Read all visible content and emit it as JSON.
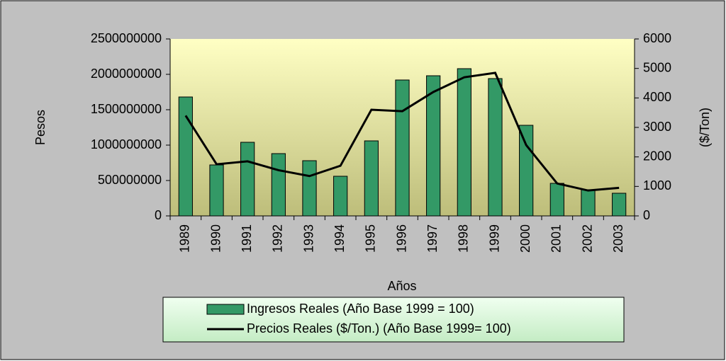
{
  "chart_data": {
    "type": "bar_line",
    "categories": [
      "1989",
      "1990",
      "1991",
      "1992",
      "1993",
      "1994",
      "1995",
      "1996",
      "1997",
      "1998",
      "1999",
      "2000",
      "2001",
      "2002",
      "2003"
    ],
    "series": [
      {
        "name": "Ingresos Reales (Año Base 1999 = 100)",
        "color": "#339966",
        "type": "bar",
        "values": [
          1680000000,
          720000000,
          1040000000,
          880000000,
          780000000,
          560000000,
          1060000000,
          1920000000,
          1980000000,
          2080000000,
          1940000000,
          1280000000,
          460000000,
          370000000,
          320000000
        ]
      },
      {
        "name": "Precios Reales ($/Ton.) (Año Base 1999= 100)",
        "color": "#000000",
        "type": "line",
        "axis": "y2",
        "values": [
          3400,
          1750,
          1850,
          1550,
          1350,
          1700,
          3600,
          3550,
          4200,
          4700,
          4850,
          2400,
          1100,
          860,
          950
        ]
      }
    ],
    "x_label": "Años",
    "y_label": "Pesos",
    "y2_label": "($/Ton)",
    "ylim": [
      0,
      2500000000
    ],
    "yticks": [
      0,
      500000000,
      1000000000,
      1500000000,
      2000000000,
      2500000000
    ],
    "y2lim": [
      0,
      6000
    ],
    "y2ticks": [
      0,
      1000,
      2000,
      3000,
      4000,
      5000,
      6000
    ],
    "legend": "bottom"
  }
}
